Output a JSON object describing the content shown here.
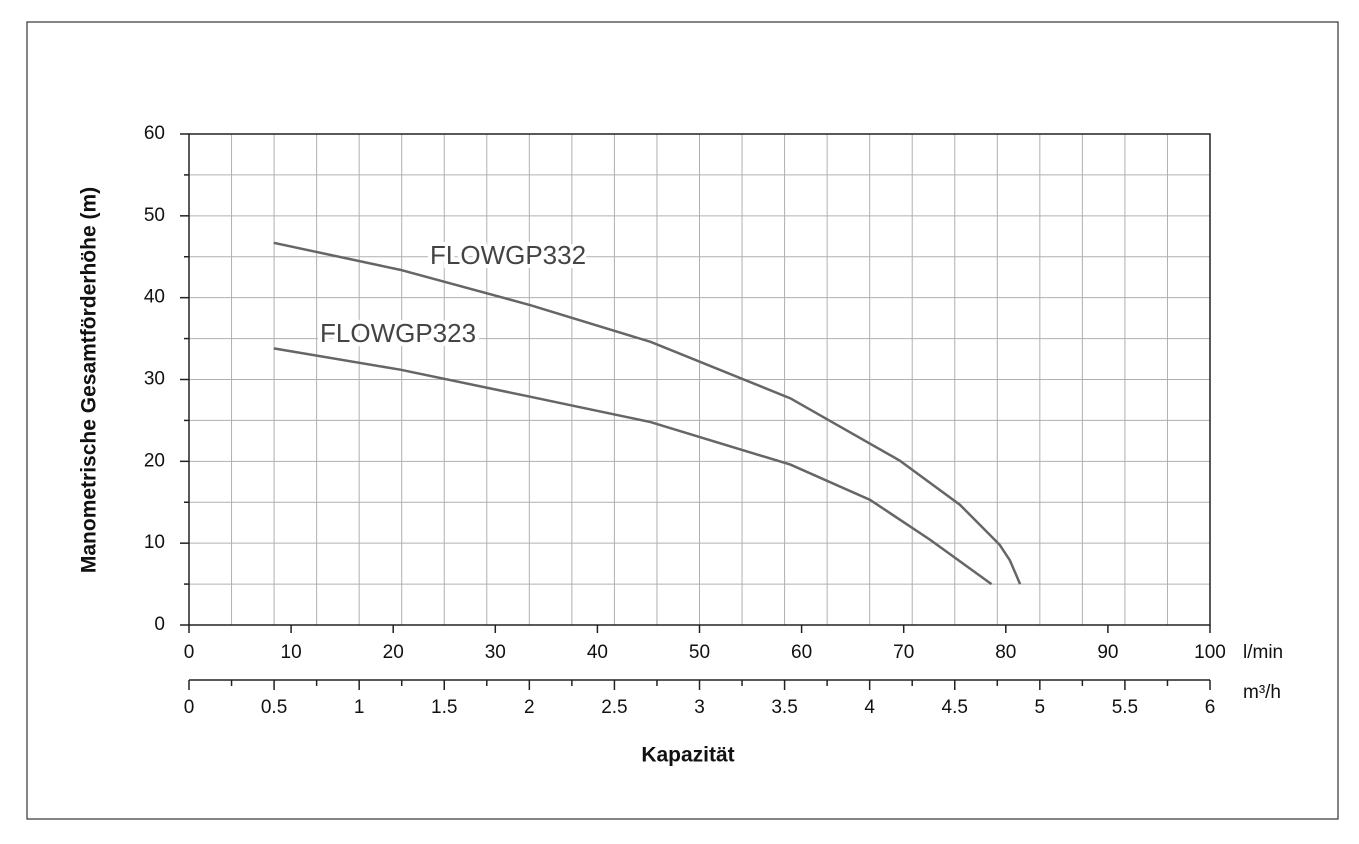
{
  "chart_data": {
    "type": "line",
    "y_label": "Manometrische Gesamtförderhöhe (m)",
    "x_label": "Kapazität",
    "x_unit": "l/min",
    "x2_unit": "m³/h",
    "xlim": [
      0,
      100
    ],
    "xticks": [
      0,
      10,
      20,
      30,
      40,
      50,
      60,
      70,
      80,
      90,
      100
    ],
    "x2lim": [
      0,
      6
    ],
    "x2ticks": [
      0,
      0.5,
      1,
      1.5,
      2,
      2.5,
      3,
      3.5,
      4,
      4.5,
      5,
      5.5,
      6
    ],
    "x2minor": [
      0.25,
      0.75,
      1.25,
      1.75,
      2.25,
      2.75,
      3.25,
      3.75,
      4.25,
      4.75,
      5.25,
      5.75
    ],
    "ylim": [
      0,
      60
    ],
    "yticks": [
      0,
      10,
      20,
      30,
      40,
      50,
      60
    ],
    "yminor": [
      5,
      15,
      25,
      35,
      45,
      55
    ],
    "grid": true,
    "series": [
      {
        "name": "FLOWGP332",
        "color": "#666666",
        "x": [
          8.3,
          20.7,
          33.4,
          45.2,
          58.9,
          69.6,
          75.5,
          79.4,
          80.4,
          81.4
        ],
        "values": [
          46.7,
          43.4,
          39.1,
          34.6,
          27.7,
          20.1,
          14.7,
          9.8,
          7.9,
          5
        ]
      },
      {
        "name": "FLOWGP323",
        "color": "#666666",
        "x": [
          8.3,
          20.7,
          33.4,
          45.2,
          58.9,
          66.7,
          72.6,
          78.6
        ],
        "values": [
          33.8,
          31.2,
          27.9,
          24.8,
          19.6,
          15.3,
          10.4,
          5
        ]
      }
    ]
  }
}
